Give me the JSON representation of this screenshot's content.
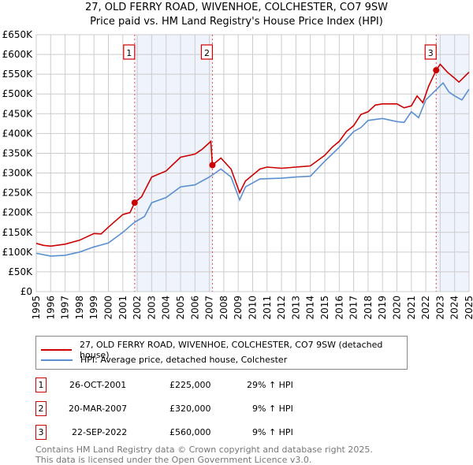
{
  "title": "27, OLD FERRY ROAD, WIVENHOE, COLCHESTER, CO7 9SW",
  "subtitle": "Price paid vs. HM Land Registry's House Price Index (HPI)",
  "chart_data": {
    "type": "line",
    "title": "27, OLD FERRY ROAD, WIVENHOE, COLCHESTER, CO7 9SW",
    "subtitle": "Price paid vs. HM Land Registry's House Price Index (HPI)",
    "xlim": [
      1995,
      2025
    ],
    "ylim": [
      0,
      650000
    ],
    "yticks": [
      0,
      50000,
      100000,
      150000,
      200000,
      250000,
      300000,
      350000,
      400000,
      450000,
      500000,
      550000,
      600000,
      650000
    ],
    "ytick_labels": [
      "£0",
      "£50K",
      "£100K",
      "£150K",
      "£200K",
      "£250K",
      "£300K",
      "£350K",
      "£400K",
      "£450K",
      "£500K",
      "£550K",
      "£600K",
      "£650K"
    ],
    "xticks": [
      1995,
      1996,
      1997,
      1998,
      1999,
      2000,
      2001,
      2002,
      2003,
      2004,
      2005,
      2006,
      2007,
      2008,
      2009,
      2010,
      2011,
      2012,
      2013,
      2014,
      2015,
      2016,
      2017,
      2018,
      2019,
      2020,
      2021,
      2022,
      2023,
      2024,
      2025
    ],
    "grid": true,
    "series": [
      {
        "name": "27, OLD FERRY ROAD, WIVENHOE, COLCHESTER, CO7 9SW (detached house)",
        "color": "#cc0000",
        "x": [
          1995,
          1995.5,
          1996,
          1997,
          1998,
          1999,
          1999.5,
          2000,
          2001,
          2001.5,
          2001.82,
          2002.3,
          2003,
          2004,
          2005,
          2006,
          2006.5,
          2007.1,
          2007.21,
          2007.8,
          2008.5,
          2009.1,
          2009.5,
          2010.5,
          2011,
          2012,
          2013,
          2014,
          2015,
          2015.5,
          2016,
          2016.5,
          2017,
          2017.5,
          2018,
          2018.5,
          2019,
          2020,
          2020.5,
          2021,
          2021.4,
          2021.8,
          2022.2,
          2022.72,
          2023,
          2023.5,
          2024,
          2024.3,
          2024.8,
          2025
        ],
        "y": [
          122000,
          117000,
          115000,
          120000,
          130000,
          147000,
          146000,
          163000,
          195000,
          200000,
          225000,
          240000,
          290000,
          305000,
          340000,
          348000,
          360000,
          380000,
          320000,
          338000,
          310000,
          250000,
          280000,
          310000,
          315000,
          312000,
          315000,
          318000,
          345000,
          365000,
          380000,
          405000,
          420000,
          448000,
          455000,
          472000,
          475000,
          475000,
          465000,
          470000,
          495000,
          478000,
          520000,
          560000,
          575000,
          555000,
          540000,
          530000,
          548000,
          555000
        ]
      },
      {
        "name": "HPI: Average price, detached house, Colchester",
        "color": "#5b8fd0",
        "x": [
          1995,
          1996,
          1997,
          1998,
          1999,
          2000,
          2001,
          2001.8,
          2002.5,
          2003,
          2004,
          2005,
          2006,
          2007,
          2007.8,
          2008.5,
          2009.1,
          2009.5,
          2010.5,
          2012,
          2013,
          2014,
          2015,
          2016,
          2017,
          2017.5,
          2018,
          2019,
          2020,
          2020.5,
          2021,
          2021.5,
          2022,
          2022.7,
          2023.2,
          2023.6,
          2024,
          2024.5,
          2025
        ],
        "y": [
          97000,
          90000,
          92000,
          100000,
          113000,
          123000,
          150000,
          175000,
          190000,
          225000,
          238000,
          265000,
          270000,
          290000,
          310000,
          290000,
          232000,
          265000,
          285000,
          287000,
          290000,
          292000,
          330000,
          365000,
          405000,
          415000,
          433000,
          438000,
          430000,
          428000,
          455000,
          440000,
          485000,
          510000,
          528000,
          505000,
          495000,
          485000,
          512000
        ]
      }
    ],
    "sales": [
      {
        "label": "1",
        "x": 2001.82,
        "price": 225000,
        "date": "26-OCT-2001",
        "price_text": "£225,000",
        "hpi": "29% ↑ HPI"
      },
      {
        "label": "2",
        "x": 2007.21,
        "price": 320000,
        "date": "20-MAR-2007",
        "price_text": "£320,000",
        "hpi": "9% ↑ HPI"
      },
      {
        "label": "3",
        "x": 2022.72,
        "price": 560000,
        "date": "22-SEP-2022",
        "price_text": "£560,000",
        "hpi": "9% ↑ HPI"
      }
    ],
    "shaded": [
      [
        2001.82,
        2007.21
      ],
      [
        2022.72,
        2025
      ]
    ],
    "legend_position": "below"
  },
  "footer": {
    "line1": "Contains HM Land Registry data © Crown copyright and database right 2025.",
    "line2": "This data is licensed under the Open Government Licence v3.0."
  }
}
